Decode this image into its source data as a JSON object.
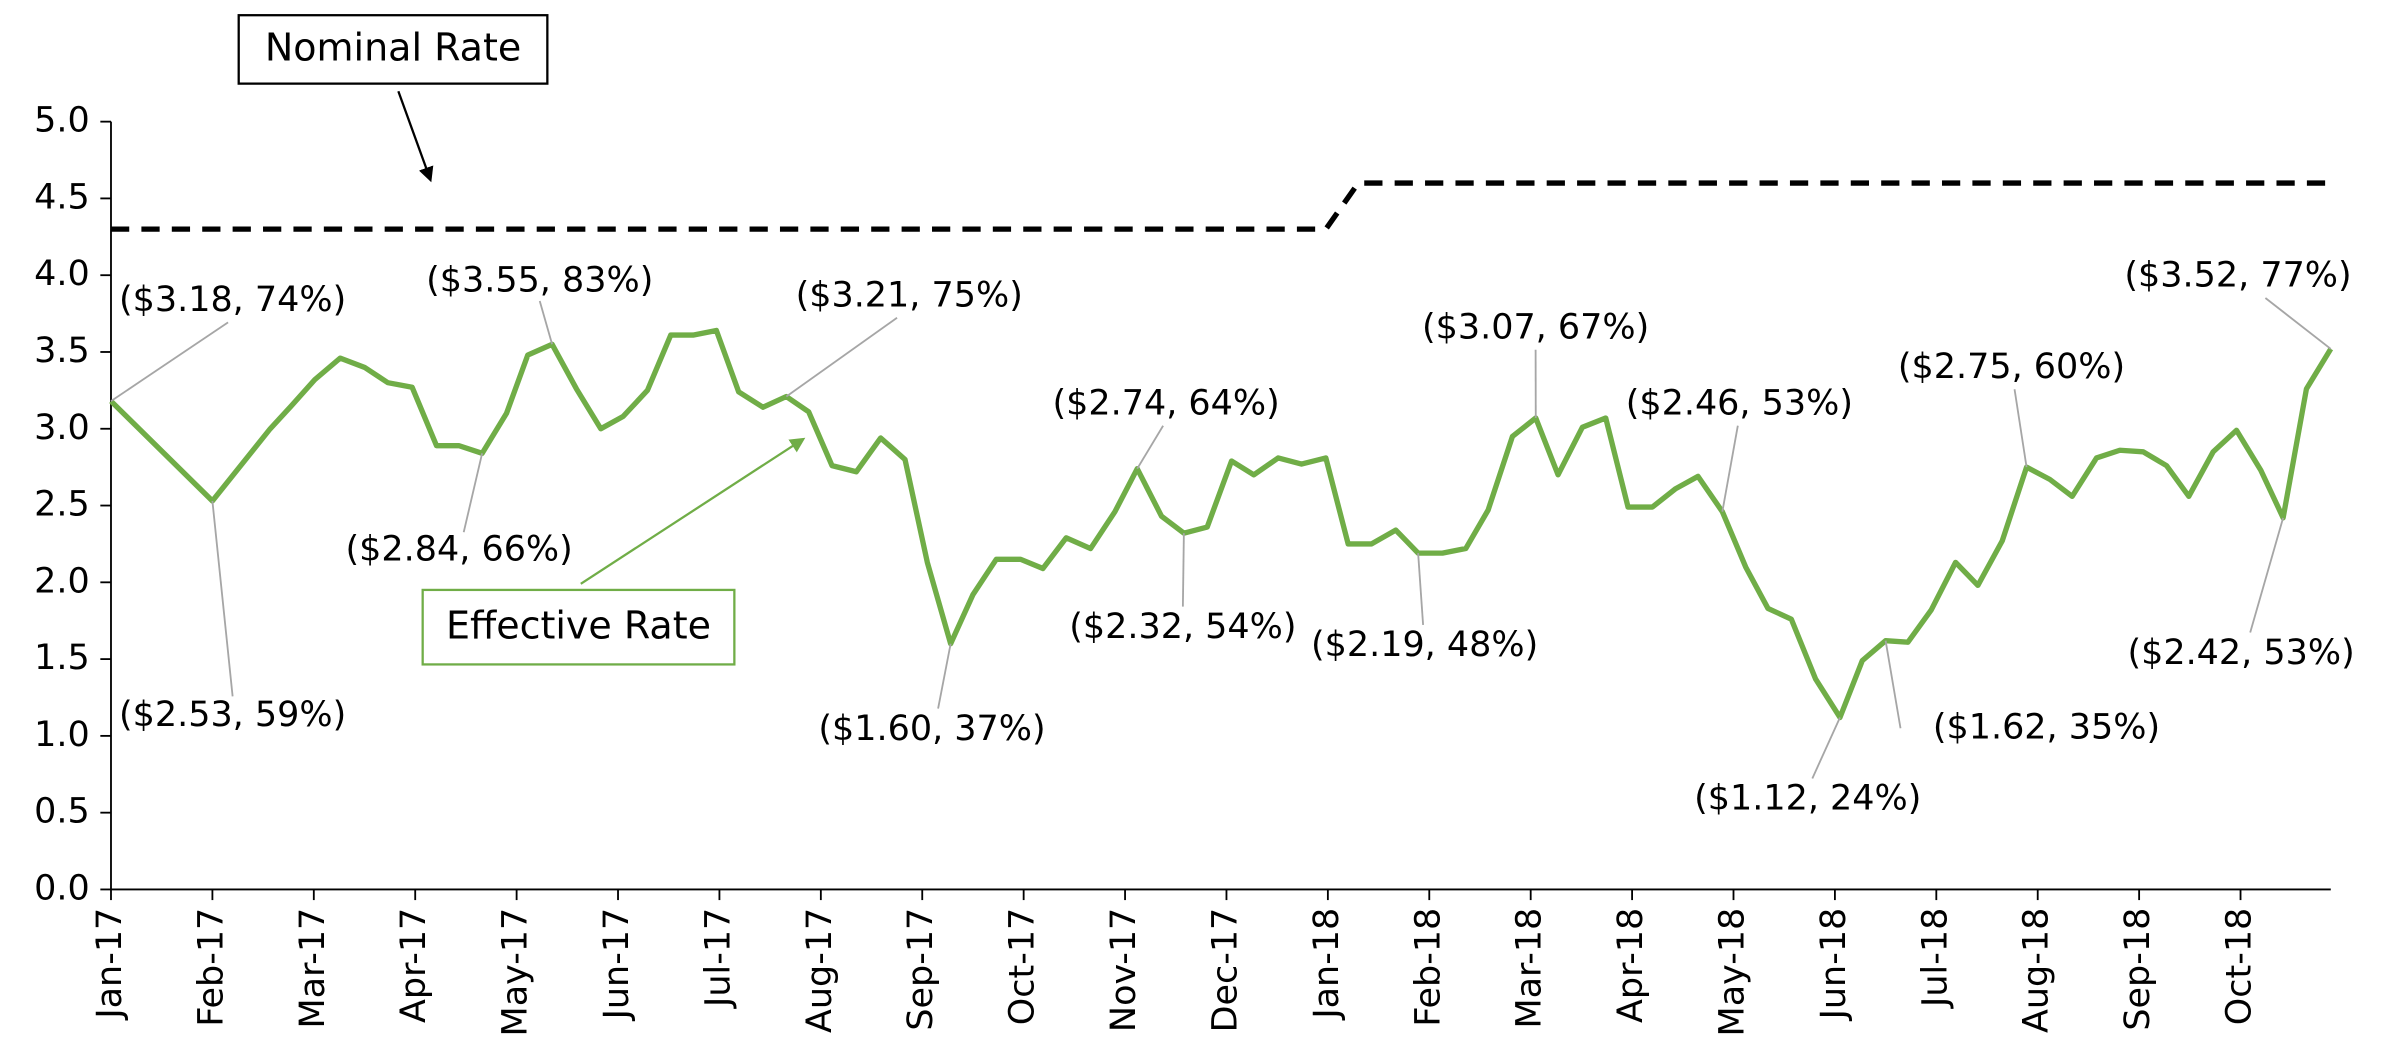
{
  "chart_data": {
    "type": "line",
    "x": [
      0,
      1.0,
      1.57,
      1.78,
      2.01,
      2.26,
      2.5,
      2.73,
      2.97,
      3.21,
      3.43,
      3.66,
      3.9,
      4.11,
      4.35,
      4.59,
      4.83,
      5.05,
      5.29,
      5.52,
      5.74,
      5.97,
      6.19,
      6.43,
      6.66,
      6.88,
      7.11,
      7.35,
      7.59,
      7.83,
      8.05,
      8.28,
      8.5,
      8.73,
      8.97,
      9.19,
      9.42,
      9.66,
      9.9,
      10.12,
      10.36,
      10.58,
      10.81,
      11.05,
      11.27,
      11.51,
      11.74,
      11.98,
      12.2,
      12.43,
      12.67,
      12.89,
      13.13,
      13.36,
      13.58,
      13.82,
      14.05,
      14.27,
      14.51,
      14.74,
      14.96,
      15.2,
      15.43,
      15.65,
      15.89,
      16.12,
      16.34,
      16.57,
      16.81,
      17.05,
      17.27,
      17.5,
      17.72,
      17.95,
      18.19,
      18.41,
      18.65,
      18.89,
      19.12,
      19.34,
      19.58,
      19.81,
      20.04,
      20.27,
      20.49,
      20.73,
      20.96,
      21.2,
      21.42,
      21.65,
      21.89
    ],
    "series": [
      {
        "name": "Effective Rate",
        "color": "#70ad47",
        "values": [
          3.18,
          2.53,
          3.0,
          3.15,
          3.32,
          3.46,
          3.4,
          3.3,
          3.27,
          2.89,
          2.89,
          2.84,
          3.1,
          3.48,
          3.55,
          3.26,
          3.0,
          3.08,
          3.25,
          3.61,
          3.61,
          3.64,
          3.24,
          3.14,
          3.21,
          3.11,
          2.76,
          2.72,
          2.94,
          2.8,
          2.13,
          1.6,
          1.92,
          2.15,
          2.15,
          2.09,
          2.29,
          2.22,
          2.46,
          2.74,
          2.43,
          2.32,
          2.36,
          2.79,
          2.7,
          2.81,
          2.77,
          2.81,
          2.25,
          2.25,
          2.34,
          2.19,
          2.19,
          2.22,
          2.47,
          2.95,
          3.07,
          2.7,
          3.01,
          3.07,
          2.49,
          2.49,
          2.61,
          2.69,
          2.46,
          2.1,
          1.83,
          1.76,
          1.37,
          1.12,
          1.49,
          1.62,
          1.61,
          1.82,
          2.13,
          1.98,
          2.27,
          2.75,
          2.67,
          2.56,
          2.81,
          2.86,
          2.85,
          2.76,
          2.56,
          2.85,
          2.99,
          2.73,
          2.42,
          3.26,
          3.52
        ]
      },
      {
        "name": "Nominal Rate",
        "color": "#000000",
        "dashed": true,
        "x": [
          0,
          11.98,
          12.3,
          21.89
        ],
        "values": [
          4.3,
          4.3,
          4.6,
          4.6
        ]
      }
    ],
    "xlim": [
      0,
      21.89
    ],
    "xticks": [
      {
        "value": 0,
        "label": "Jan-17"
      },
      {
        "value": 1,
        "label": "Feb-17"
      },
      {
        "value": 2,
        "label": "Mar-17"
      },
      {
        "value": 3,
        "label": "Apr-17"
      },
      {
        "value": 4,
        "label": "May-17"
      },
      {
        "value": 5,
        "label": "Jun-17"
      },
      {
        "value": 6,
        "label": "Jul-17"
      },
      {
        "value": 7,
        "label": "Aug-17"
      },
      {
        "value": 8,
        "label": "Sep-17"
      },
      {
        "value": 9,
        "label": "Oct-17"
      },
      {
        "value": 10,
        "label": "Nov-17"
      },
      {
        "value": 11,
        "label": "Dec-17"
      },
      {
        "value": 12,
        "label": "Jan-18"
      },
      {
        "value": 13,
        "label": "Feb-18"
      },
      {
        "value": 14,
        "label": "Mar-18"
      },
      {
        "value": 15,
        "label": "Apr-18"
      },
      {
        "value": 16,
        "label": "May-18"
      },
      {
        "value": 17,
        "label": "Jun-18"
      },
      {
        "value": 18,
        "label": "Jul-18"
      },
      {
        "value": 19,
        "label": "Aug-18"
      },
      {
        "value": 20,
        "label": "Sep-18"
      },
      {
        "value": 21,
        "label": "Oct-18"
      }
    ],
    "ylim": [
      0,
      5
    ],
    "yticks": [
      {
        "value": 0,
        "label": "0.0"
      },
      {
        "value": 0.5,
        "label": "0.5"
      },
      {
        "value": 1,
        "label": "1.0"
      },
      {
        "value": 1.5,
        "label": "1.5"
      },
      {
        "value": 2,
        "label": "2.0"
      },
      {
        "value": 2.5,
        "label": "2.5"
      },
      {
        "value": 3,
        "label": "3.0"
      },
      {
        "value": 3.5,
        "label": "3.5"
      },
      {
        "value": 4,
        "label": "4.0"
      },
      {
        "value": 4.5,
        "label": "4.5"
      },
      {
        "value": 5,
        "label": "5.0"
      }
    ],
    "grid": false,
    "annotations": [
      {
        "text": "($3.18, 74%)",
        "x": 0,
        "y": 3.18
      },
      {
        "text": "($2.53, 59%)",
        "x": 1.0,
        "y": 2.53
      },
      {
        "text": "($3.55, 83%)",
        "x": 4.35,
        "y": 3.55
      },
      {
        "text": "($2.84, 66%)",
        "x": 3.66,
        "y": 2.84
      },
      {
        "text": "($3.21, 75%)",
        "x": 6.66,
        "y": 3.21
      },
      {
        "text": "($1.60, 37%)",
        "x": 8.28,
        "y": 1.6
      },
      {
        "text": "($2.74, 64%)",
        "x": 10.12,
        "y": 2.74
      },
      {
        "text": "($2.32, 54%)",
        "x": 10.58,
        "y": 2.32
      },
      {
        "text": "($2.19, 48%)",
        "x": 12.89,
        "y": 2.19
      },
      {
        "text": "($3.07, 67%)",
        "x": 14.05,
        "y": 3.07
      },
      {
        "text": "($2.46, 53%)",
        "x": 15.89,
        "y": 2.46
      },
      {
        "text": "($2.75, 60%)",
        "x": 18.89,
        "y": 2.75
      },
      {
        "text": "($1.12, 24%)",
        "x": 17.05,
        "y": 1.12
      },
      {
        "text": "($1.62, 35%)",
        "x": 17.5,
        "y": 1.62
      },
      {
        "text": "($2.42, 53%)",
        "x": 21.42,
        "y": 2.42
      },
      {
        "text": "($3.52, 77%)",
        "x": 21.89,
        "y": 3.52
      }
    ]
  }
}
